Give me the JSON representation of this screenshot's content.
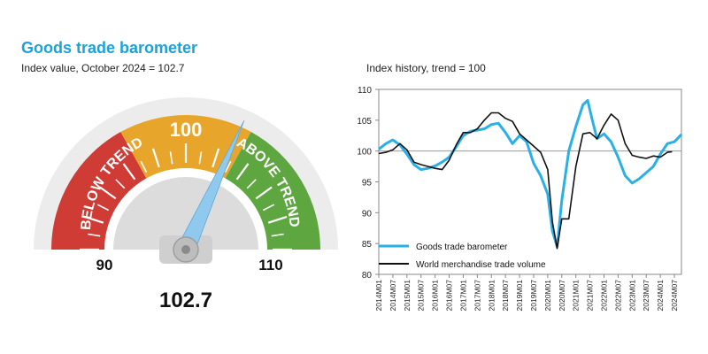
{
  "gauge": {
    "title": "Goods trade barometer",
    "subtitle": "Index value, October 2024 = 102.7",
    "value": 102.7,
    "value_label": "102.7",
    "min": 90,
    "max": 110,
    "min_label": "90",
    "max_label": "110",
    "center_label": "100",
    "below_label": "BELOW TREND",
    "above_label": "ABOVE TREND",
    "colors": {
      "below": "#cf3b35",
      "center": "#e7a62b",
      "above": "#5ea740",
      "needle": "#8fc9ee"
    }
  },
  "chart_data": {
    "type": "line",
    "title": "Index history, trend = 100",
    "ylim": [
      80,
      110
    ],
    "yticks": [
      80,
      85,
      90,
      95,
      100,
      105,
      110
    ],
    "xlim": [
      "2014M01",
      "2024M10"
    ],
    "xticks": [
      "2014M01",
      "2014M07",
      "2015M01",
      "2015M07",
      "2016M01",
      "2016M07",
      "2017M01",
      "2017M07",
      "2018M01",
      "2018M07",
      "2019M01",
      "2019M07",
      "2020M01",
      "2020M07",
      "2021M01",
      "2021M07",
      "2022M01",
      "2022M07",
      "2023M01",
      "2023M07",
      "2024M01",
      "2024M07"
    ],
    "reference_line": 100,
    "legend_position": "bottom-left",
    "series": [
      {
        "name": "Goods trade barometer",
        "color": "#29b0e6",
        "points": [
          [
            "2014M01",
            100.3
          ],
          [
            "2014M04",
            101.2
          ],
          [
            "2014M07",
            101.8
          ],
          [
            "2014M10",
            101.0
          ],
          [
            "2015M01",
            99.5
          ],
          [
            "2015M04",
            97.8
          ],
          [
            "2015M07",
            97.0
          ],
          [
            "2015M10",
            97.2
          ],
          [
            "2016M01",
            97.6
          ],
          [
            "2016M04",
            98.2
          ],
          [
            "2016M07",
            99.0
          ],
          [
            "2016M10",
            100.7
          ],
          [
            "2017M01",
            102.5
          ],
          [
            "2017M04",
            103.2
          ],
          [
            "2017M07",
            103.4
          ],
          [
            "2017M10",
            103.6
          ],
          [
            "2018M01",
            104.3
          ],
          [
            "2018M04",
            104.5
          ],
          [
            "2018M07",
            103.0
          ],
          [
            "2018M10",
            101.2
          ],
          [
            "2019M01",
            102.5
          ],
          [
            "2019M04",
            101.5
          ],
          [
            "2019M07",
            98.0
          ],
          [
            "2019M10",
            96.0
          ],
          [
            "2020M01",
            93.0
          ],
          [
            "2020M03",
            87.0
          ],
          [
            "2020M05",
            84.5
          ],
          [
            "2020M07",
            92.0
          ],
          [
            "2020M10",
            100.0
          ],
          [
            "2021M01",
            104.0
          ],
          [
            "2021M04",
            107.5
          ],
          [
            "2021M06",
            108.2
          ],
          [
            "2021M08",
            105.0
          ],
          [
            "2021M10",
            102.0
          ],
          [
            "2022M01",
            102.8
          ],
          [
            "2022M04",
            101.5
          ],
          [
            "2022M07",
            99.0
          ],
          [
            "2022M10",
            96.0
          ],
          [
            "2023M01",
            94.8
          ],
          [
            "2023M04",
            95.5
          ],
          [
            "2023M07",
            96.5
          ],
          [
            "2023M10",
            97.5
          ],
          [
            "2024M01",
            99.5
          ],
          [
            "2024M04",
            101.2
          ],
          [
            "2024M07",
            101.5
          ],
          [
            "2024M10",
            102.7
          ]
        ]
      },
      {
        "name": "World merchandise trade volume",
        "color": "#111111",
        "points": [
          [
            "2014M01",
            99.6
          ],
          [
            "2014M04",
            99.8
          ],
          [
            "2014M07",
            100.2
          ],
          [
            "2014M10",
            101.2
          ],
          [
            "2015M01",
            100.2
          ],
          [
            "2015M04",
            98.2
          ],
          [
            "2015M07",
            97.8
          ],
          [
            "2015M10",
            97.5
          ],
          [
            "2016M01",
            97.2
          ],
          [
            "2016M04",
            97.0
          ],
          [
            "2016M07",
            98.5
          ],
          [
            "2016M10",
            101.0
          ],
          [
            "2017M01",
            103.0
          ],
          [
            "2017M04",
            103.0
          ],
          [
            "2017M07",
            103.6
          ],
          [
            "2017M10",
            105.0
          ],
          [
            "2018M01",
            106.2
          ],
          [
            "2018M04",
            106.2
          ],
          [
            "2018M07",
            105.3
          ],
          [
            "2018M10",
            104.8
          ],
          [
            "2019M01",
            102.8
          ],
          [
            "2019M04",
            101.8
          ],
          [
            "2019M07",
            100.8
          ],
          [
            "2019M10",
            99.8
          ],
          [
            "2020M01",
            97.0
          ],
          [
            "2020M03",
            88.5
          ],
          [
            "2020M05",
            84.2
          ],
          [
            "2020M07",
            89.0
          ],
          [
            "2020M10",
            89.0
          ],
          [
            "2021M01",
            97.5
          ],
          [
            "2021M04",
            102.8
          ],
          [
            "2021M07",
            103.0
          ],
          [
            "2021M10",
            102.0
          ],
          [
            "2022M01",
            104.2
          ],
          [
            "2022M04",
            106.0
          ],
          [
            "2022M07",
            105.0
          ],
          [
            "2022M10",
            101.2
          ],
          [
            "2023M01",
            99.3
          ],
          [
            "2023M04",
            99.0
          ],
          [
            "2023M07",
            98.8
          ],
          [
            "2023M10",
            99.2
          ],
          [
            "2024M01",
            99.0
          ],
          [
            "2024M04",
            99.8
          ],
          [
            "2024M06",
            99.9
          ]
        ]
      }
    ]
  }
}
